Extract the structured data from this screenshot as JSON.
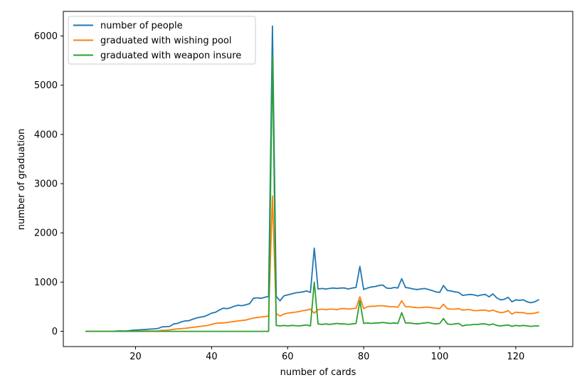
{
  "chart_data": {
    "type": "line",
    "title": "",
    "xlabel": "number of cards",
    "ylabel": "number of graduation",
    "xlim": [
      1,
      135
    ],
    "ylim": [
      -310,
      6500
    ],
    "xticks": [
      20,
      40,
      60,
      80,
      100,
      120
    ],
    "yticks": [
      0,
      1000,
      2000,
      3000,
      4000,
      5000,
      6000
    ],
    "grid": false,
    "legend_position": "upper-left",
    "x_start": 7,
    "series": [
      {
        "name": "number of people",
        "color": "#1f77b4",
        "values": [
          0,
          0,
          0,
          0,
          0,
          0,
          0,
          0,
          5,
          10,
          5,
          10,
          20,
          25,
          30,
          35,
          40,
          45,
          50,
          60,
          90,
          95,
          100,
          150,
          160,
          190,
          210,
          215,
          245,
          270,
          285,
          300,
          330,
          370,
          385,
          430,
          470,
          460,
          480,
          510,
          530,
          520,
          540,
          560,
          670,
          680,
          670,
          690,
          710,
          6200,
          710,
          620,
          720,
          740,
          760,
          780,
          790,
          800,
          820,
          790,
          1690,
          860,
          870,
          860,
          870,
          880,
          870,
          880,
          880,
          860,
          880,
          890,
          1320,
          850,
          880,
          900,
          910,
          930,
          940,
          880,
          870,
          890,
          880,
          1070,
          890,
          880,
          860,
          850,
          860,
          870,
          850,
          830,
          800,
          790,
          930,
          830,
          820,
          800,
          790,
          730,
          740,
          750,
          740,
          720,
          740,
          750,
          700,
          760,
          680,
          640,
          650,
          690,
          600,
          640,
          630,
          640,
          600,
          580,
          600,
          640
        ]
      },
      {
        "name": "graduated with wishing pool",
        "color": "#ff7f0e",
        "values": [
          0,
          0,
          0,
          0,
          0,
          0,
          0,
          0,
          0,
          0,
          0,
          0,
          0,
          0,
          5,
          5,
          5,
          5,
          5,
          10,
          20,
          20,
          30,
          40,
          50,
          55,
          60,
          70,
          80,
          90,
          100,
          110,
          120,
          140,
          160,
          170,
          170,
          180,
          190,
          200,
          210,
          220,
          230,
          250,
          270,
          280,
          290,
          300,
          310,
          2750,
          360,
          310,
          350,
          370,
          380,
          390,
          400,
          420,
          430,
          450,
          370,
          440,
          450,
          440,
          450,
          450,
          440,
          460,
          460,
          450,
          460,
          470,
          700,
          460,
          500,
          510,
          510,
          520,
          520,
          510,
          500,
          500,
          490,
          620,
          500,
          500,
          490,
          480,
          480,
          490,
          490,
          480,
          470,
          460,
          550,
          460,
          450,
          450,
          460,
          430,
          440,
          440,
          420,
          420,
          430,
          430,
          410,
          430,
          400,
          380,
          390,
          420,
          350,
          390,
          380,
          380,
          360,
          360,
          370,
          390
        ]
      },
      {
        "name": "graduated with weapon insure",
        "color": "#2ca02c",
        "values": [
          0,
          0,
          0,
          0,
          0,
          0,
          0,
          0,
          0,
          0,
          0,
          0,
          0,
          0,
          0,
          0,
          0,
          0,
          0,
          0,
          0,
          0,
          0,
          0,
          0,
          0,
          0,
          0,
          0,
          0,
          0,
          0,
          0,
          0,
          0,
          0,
          0,
          0,
          0,
          0,
          0,
          0,
          0,
          0,
          0,
          0,
          0,
          0,
          0,
          5600,
          120,
          110,
          120,
          110,
          120,
          115,
          110,
          120,
          130,
          110,
          1000,
          150,
          140,
          150,
          140,
          150,
          160,
          150,
          150,
          140,
          150,
          160,
          620,
          160,
          170,
          160,
          170,
          170,
          180,
          170,
          160,
          170,
          160,
          380,
          170,
          170,
          160,
          150,
          160,
          170,
          180,
          160,
          150,
          160,
          260,
          150,
          140,
          150,
          160,
          110,
          130,
          130,
          140,
          140,
          150,
          150,
          130,
          150,
          120,
          110,
          120,
          130,
          100,
          120,
          110,
          120,
          110,
          100,
          110,
          110
        ]
      }
    ]
  }
}
